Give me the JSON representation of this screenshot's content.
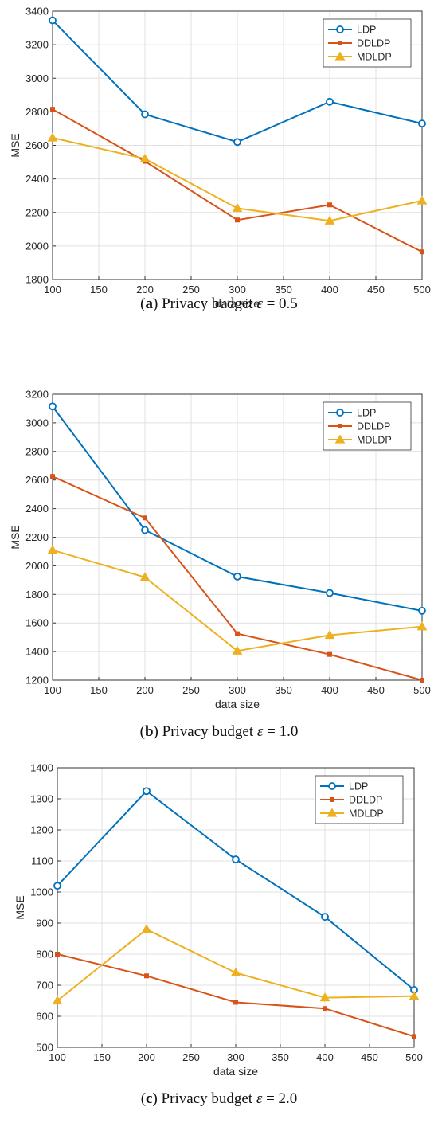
{
  "colors": {
    "LDP": "#0072BD",
    "DDLDP": "#D95319",
    "MDLDP": "#EDB120"
  },
  "chart_data": [
    {
      "type": "line",
      "xlabel": "data size",
      "ylabel": "MSE",
      "x": [
        100,
        200,
        300,
        400,
        500
      ],
      "xlim": [
        100,
        500
      ],
      "ylim": [
        1800,
        3400
      ],
      "xticks": [
        100,
        150,
        200,
        250,
        300,
        350,
        400,
        450,
        500
      ],
      "yticks": [
        1800,
        2000,
        2200,
        2400,
        2600,
        2800,
        3000,
        3200,
        3400
      ],
      "grid": true,
      "legend": "top-right",
      "series": [
        {
          "name": "LDP",
          "marker": "circle",
          "values": [
            3345,
            2785,
            2620,
            2860,
            2730
          ]
        },
        {
          "name": "DDLDP",
          "marker": "square",
          "values": [
            2815,
            2505,
            2155,
            2245,
            1965
          ]
        },
        {
          "name": "MDLDP",
          "marker": "triangle",
          "values": [
            2645,
            2520,
            2225,
            2150,
            2270
          ]
        }
      ],
      "caption": {
        "letter": "a",
        "text": "Privacy budget",
        "symbol": "ε",
        "value": "= 0.5"
      }
    },
    {
      "type": "line",
      "xlabel": "data size",
      "ylabel": "MSE",
      "x": [
        100,
        200,
        300,
        400,
        500
      ],
      "xlim": [
        100,
        500
      ],
      "ylim": [
        1200,
        3200
      ],
      "xticks": [
        100,
        150,
        200,
        250,
        300,
        350,
        400,
        450,
        500
      ],
      "yticks": [
        1200,
        1400,
        1600,
        1800,
        2000,
        2200,
        2400,
        2600,
        2800,
        3000,
        3200
      ],
      "grid": true,
      "legend": "top-right",
      "series": [
        {
          "name": "LDP",
          "marker": "circle",
          "values": [
            3115,
            2250,
            1925,
            1810,
            1685
          ]
        },
        {
          "name": "DDLDP",
          "marker": "square",
          "values": [
            2625,
            2335,
            1525,
            1380,
            1200
          ]
        },
        {
          "name": "MDLDP",
          "marker": "triangle",
          "values": [
            2110,
            1920,
            1405,
            1515,
            1575
          ]
        }
      ],
      "caption": {
        "letter": "b",
        "text": "Privacy budget",
        "symbol": "ε",
        "value": "= 1.0"
      }
    },
    {
      "type": "line",
      "xlabel": "data size",
      "ylabel": "MSE",
      "x": [
        100,
        200,
        300,
        400,
        500
      ],
      "xlim": [
        100,
        500
      ],
      "ylim": [
        500,
        1400
      ],
      "xticks": [
        100,
        150,
        200,
        250,
        300,
        350,
        400,
        450,
        500
      ],
      "yticks": [
        500,
        600,
        700,
        800,
        900,
        1000,
        1100,
        1200,
        1300,
        1400
      ],
      "grid": true,
      "legend": "top-right",
      "series": [
        {
          "name": "LDP",
          "marker": "circle",
          "values": [
            1020,
            1325,
            1105,
            920,
            685
          ]
        },
        {
          "name": "DDLDP",
          "marker": "square",
          "values": [
            800,
            730,
            645,
            625,
            535
          ]
        },
        {
          "name": "MDLDP",
          "marker": "triangle",
          "values": [
            650,
            880,
            740,
            660,
            665
          ]
        }
      ],
      "caption": {
        "letter": "c",
        "text": "Privacy budget",
        "symbol": "ε",
        "value": "= 2.0"
      }
    }
  ]
}
